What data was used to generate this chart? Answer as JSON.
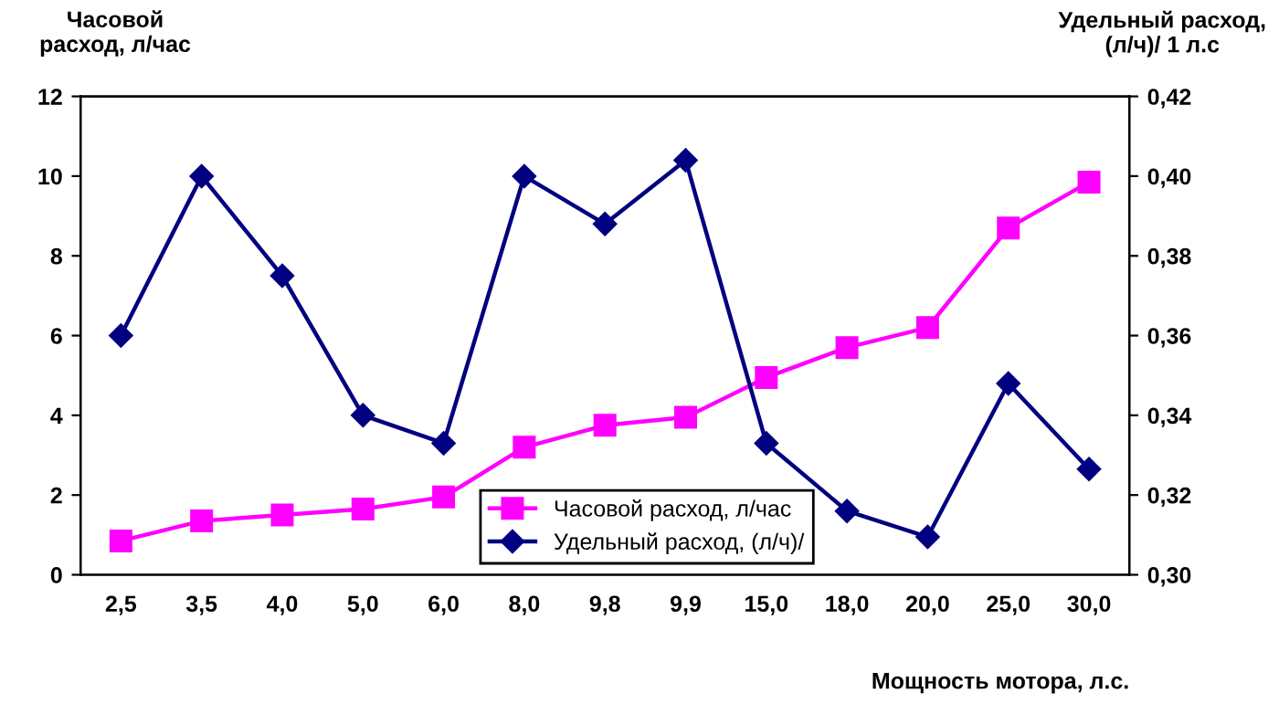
{
  "chart_data": {
    "type": "line",
    "ylabel": "Часовой\nрасход, л/час",
    "y2label": "Удельный расход,\n(л/ч)/ 1 л.с",
    "xlabel": "Мощность мотора, л.с.",
    "categories": [
      "2,5",
      "3,5",
      "4,0",
      "5,0",
      "6,0",
      "8,0",
      "9,8",
      "9,9",
      "15,0",
      "18,0",
      "20,0",
      "25,0",
      "30,0"
    ],
    "series": [
      {
        "name": "Часовой расход, л/час",
        "color": "#ff00ff",
        "marker": "square",
        "values": [
          0.85,
          1.35,
          1.5,
          1.65,
          1.95,
          3.2,
          3.75,
          3.95,
          4.95,
          5.7,
          6.2,
          8.7,
          9.85
        ]
      },
      {
        "name": "Удельный расход, (л/ч)/",
        "color": "#000080",
        "marker": "diamond",
        "axis": "y2",
        "values": [
          0.36,
          0.4,
          0.375,
          0.34,
          0.333,
          0.4,
          0.388,
          0.404,
          0.333,
          0.316,
          0.3095,
          0.348,
          0.3265
        ]
      }
    ],
    "ylim": [
      0,
      12
    ],
    "yticks": [
      0,
      2,
      4,
      6,
      8,
      10,
      12
    ],
    "y2lim": [
      0.3,
      0.42
    ],
    "y2ticks": [
      {
        "value": 0.3,
        "label": "0,30"
      },
      {
        "value": 0.32,
        "label": "0,32"
      },
      {
        "value": 0.34,
        "label": "0,34"
      },
      {
        "value": 0.36,
        "label": "0,36"
      },
      {
        "value": 0.38,
        "label": "0,38"
      },
      {
        "value": 0.4,
        "label": "0,40"
      },
      {
        "value": 0.42,
        "label": "0,42"
      }
    ],
    "grid": false,
    "legend": "bottom",
    "line_style": "solid"
  }
}
